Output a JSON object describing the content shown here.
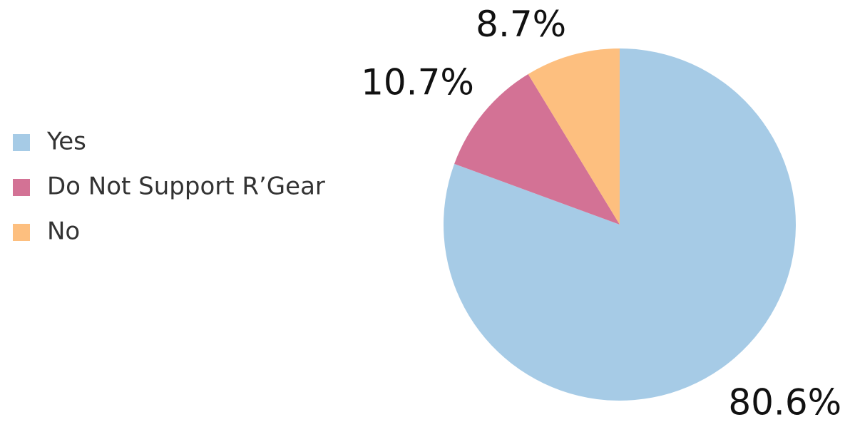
{
  "chart_data": {
    "type": "pie",
    "categories": [
      "Yes",
      "Do Not Support R’Gear",
      "No"
    ],
    "values": [
      80.6,
      10.7,
      8.7
    ],
    "value_labels": [
      "80.6%",
      "10.7%",
      "8.7%"
    ],
    "colors": [
      "#a6cbe6",
      "#d37295",
      "#fdbf7f"
    ]
  }
}
